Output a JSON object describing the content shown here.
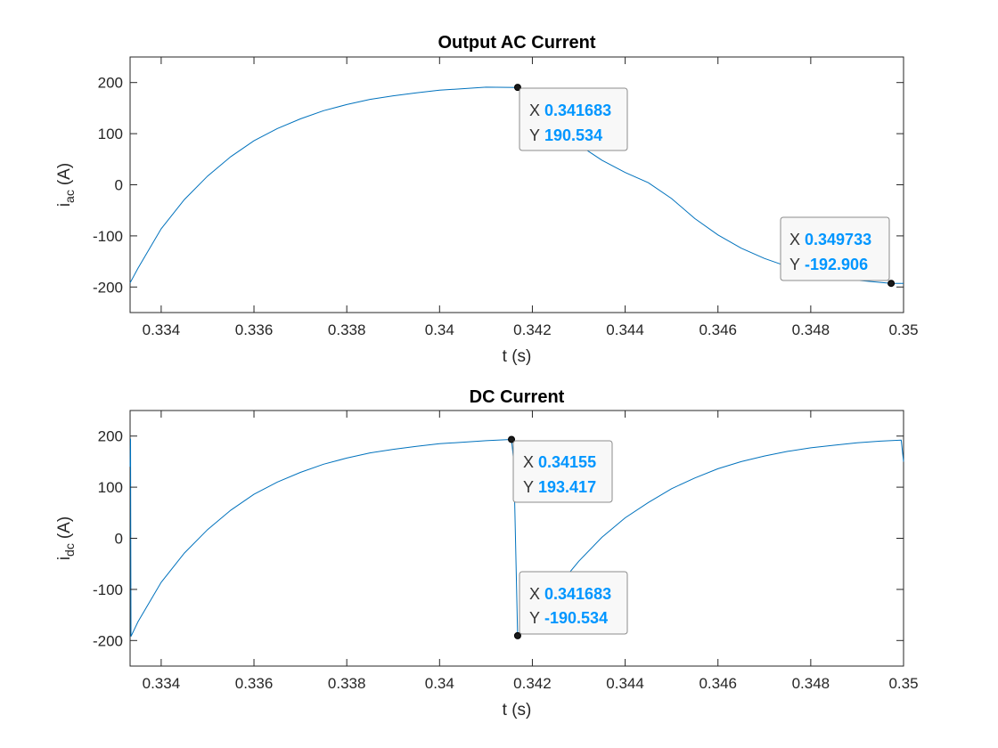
{
  "chart_data": [
    {
      "type": "line",
      "title": "Output AC Current",
      "xlabel": "t (s)",
      "ylabel": "i",
      "ylabel_sub": "ac",
      "ylabel_unit": "(A)",
      "xlim": [
        0.33333,
        0.35
      ],
      "ylim": [
        -250,
        250
      ],
      "xticks": [
        0.334,
        0.336,
        0.338,
        0.34,
        0.342,
        0.344,
        0.346,
        0.348,
        0.35
      ],
      "xtick_labels": [
        "0.334",
        "0.336",
        "0.338",
        "0.34",
        "0.342",
        "0.344",
        "0.346",
        "0.348",
        "0.35"
      ],
      "yticks": [
        -200,
        -100,
        0,
        100,
        200
      ],
      "ytick_labels": [
        "-200",
        "-100",
        "0",
        "100",
        "200"
      ],
      "grid": false,
      "line_color": "#0072bd",
      "series": [
        {
          "x": [
            0.33333,
            0.3335,
            0.334,
            0.3345,
            0.335,
            0.3355,
            0.336,
            0.3365,
            0.337,
            0.3375,
            0.338,
            0.3385,
            0.339,
            0.3395,
            0.34,
            0.3405,
            0.341,
            0.341683,
            0.342,
            0.3425,
            0.343,
            0.3435,
            0.344,
            0.3445,
            0.345,
            0.3455,
            0.346,
            0.3465,
            0.347,
            0.3475,
            0.348,
            0.3485,
            0.349,
            0.349733,
            0.35
          ],
          "y": [
            -192,
            -163,
            -86,
            -29,
            17,
            55,
            86,
            110,
            129,
            145,
            157,
            167,
            174,
            180,
            185,
            188,
            191,
            190.5,
            160,
            115,
            78,
            48,
            24,
            4,
            -27,
            -66,
            -98,
            -124,
            -144,
            -160,
            -171,
            -179,
            -187,
            -192.9,
            -193
          ]
        }
      ],
      "datatips": [
        {
          "x_label": "X",
          "x_value": "0.341683",
          "y_label": "Y",
          "y_value": "190.534",
          "point": [
            0.341683,
            190.534
          ]
        },
        {
          "x_label": "X",
          "x_value": "0.349733",
          "y_label": "Y",
          "y_value": "-192.906",
          "point": [
            0.349733,
            -192.906
          ]
        }
      ]
    },
    {
      "type": "line",
      "title": "DC Current",
      "xlabel": "t (s)",
      "ylabel": "i",
      "ylabel_sub": "dc",
      "ylabel_unit": "(A)",
      "xlim": [
        0.33333,
        0.35
      ],
      "ylim": [
        -250,
        250
      ],
      "xticks": [
        0.334,
        0.336,
        0.338,
        0.34,
        0.342,
        0.344,
        0.346,
        0.348,
        0.35
      ],
      "xtick_labels": [
        "0.334",
        "0.336",
        "0.338",
        "0.34",
        "0.342",
        "0.344",
        "0.346",
        "0.348",
        "0.35"
      ],
      "yticks": [
        -200,
        -100,
        0,
        100,
        200
      ],
      "ytick_labels": [
        "-200",
        "-100",
        "0",
        "100",
        "200"
      ],
      "grid": false,
      "line_color": "#0072bd",
      "series": [
        {
          "x": [
            0.33333,
            0.33334,
            0.33335,
            0.3335,
            0.334,
            0.3345,
            0.335,
            0.3355,
            0.336,
            0.3365,
            0.337,
            0.3375,
            0.338,
            0.3385,
            0.339,
            0.3395,
            0.34,
            0.3405,
            0.341,
            0.34155,
            0.3416,
            0.341683,
            0.342,
            0.3425,
            0.343,
            0.3435,
            0.344,
            0.3445,
            0.345,
            0.3455,
            0.346,
            0.3465,
            0.347,
            0.3475,
            0.348,
            0.3485,
            0.349,
            0.3495,
            0.34995,
            0.35
          ],
          "y": [
            140,
            195,
            -192,
            -163,
            -86,
            -29,
            17,
            55,
            86,
            110,
            129,
            145,
            157,
            167,
            174,
            180,
            185,
            188,
            191,
            193.4,
            150,
            -190.5,
            -170,
            -100,
            -45,
            2,
            40,
            70,
            97,
            118,
            136,
            150,
            161,
            170,
            177,
            182,
            187,
            190,
            192,
            150
          ]
        }
      ],
      "datatips": [
        {
          "x_label": "X",
          "x_value": "0.34155",
          "y_label": "Y",
          "y_value": "193.417",
          "point": [
            0.34155,
            193.417
          ]
        },
        {
          "x_label": "X",
          "x_value": "0.341683",
          "y_label": "Y",
          "y_value": "-190.534",
          "point": [
            0.341683,
            -190.534
          ]
        }
      ]
    }
  ]
}
